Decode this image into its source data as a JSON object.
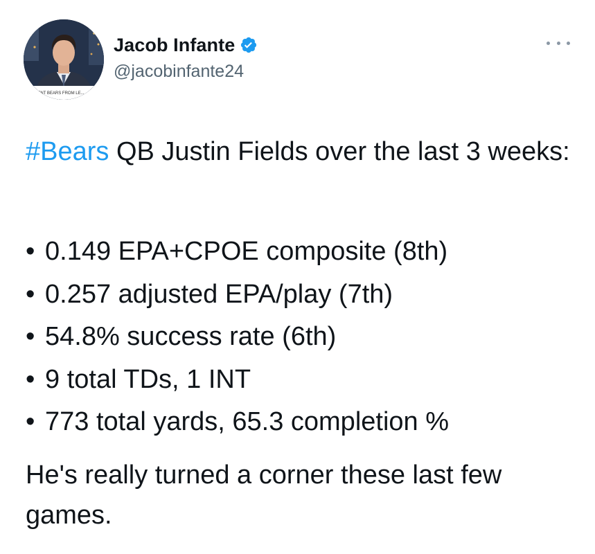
{
  "author": {
    "display_name": "Jacob Infante",
    "handle": "@jacobinfante24",
    "verified": true,
    "avatar_caption": "PREVENT BEARS FROM LE..."
  },
  "icons": {
    "verified": "verified-badge-icon",
    "more": "more-options-icon"
  },
  "colors": {
    "hashtag": "#1d9bf0",
    "verified": "#1d9bf0",
    "handle": "#536471",
    "text": "#0f1419"
  },
  "tweet": {
    "hashtag": "#Bears",
    "intro": " QB Justin Fields over the last 3 weeks:",
    "bullet_symbol": "•",
    "bullets": [
      "0.149 EPA+CPOE composite (8th)",
      "0.257 adjusted EPA/play (7th)",
      "54.8% success rate (6th)",
      "9 total TDs, 1 INT",
      "773 total yards, 65.3 completion %"
    ],
    "closing": "He's really turned a corner these last few games."
  }
}
